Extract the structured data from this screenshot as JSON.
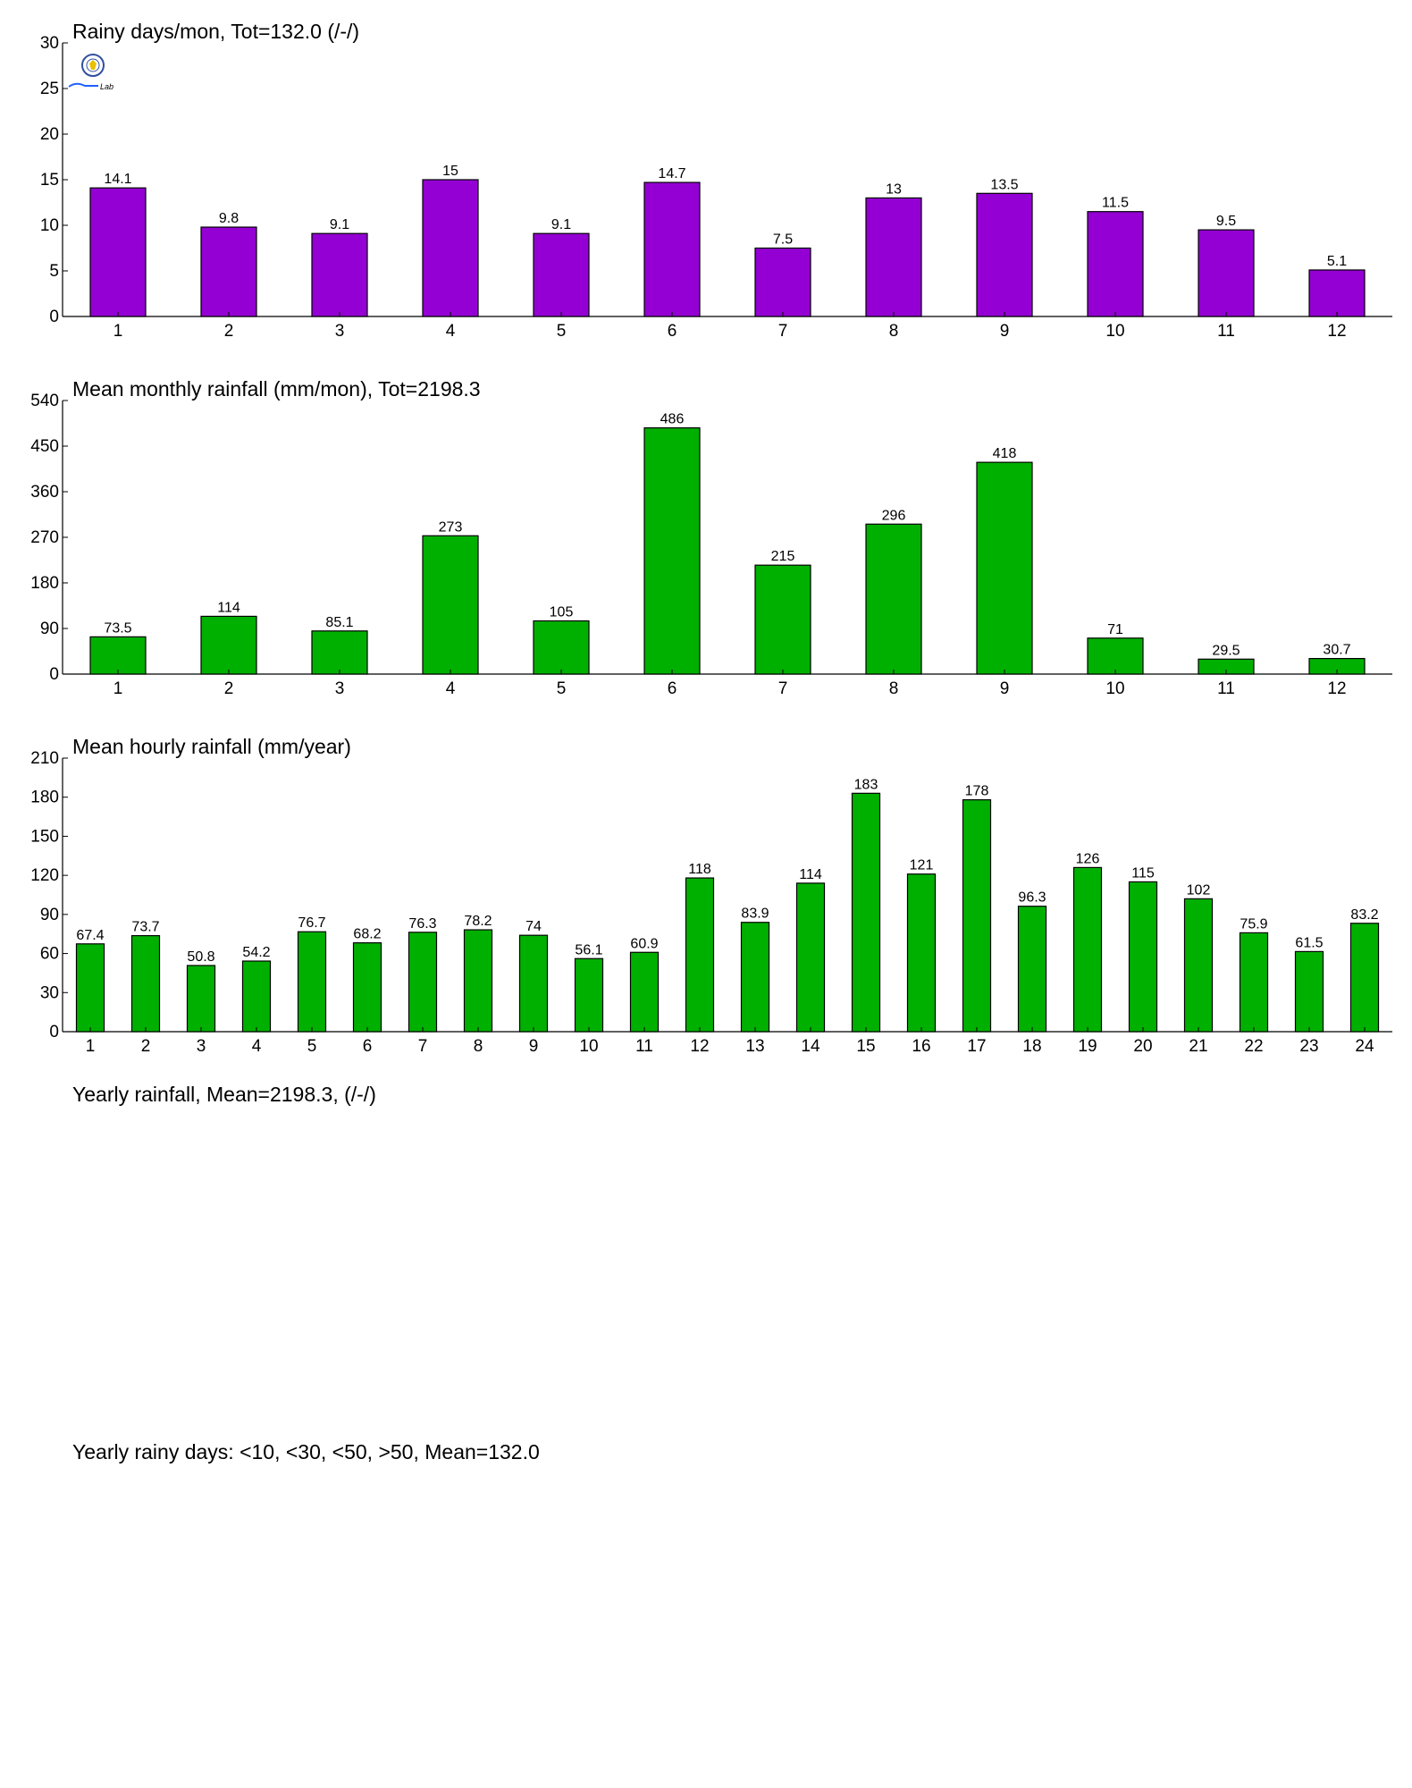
{
  "charts": [
    {
      "title": "Rainy days/mon, Tot=132.0 (/-/)",
      "color": "#9400d3",
      "type": "bar",
      "ylim": [
        0,
        30
      ],
      "yticks": [
        0,
        5,
        10,
        15,
        20,
        25,
        30
      ],
      "categories": [
        "1",
        "2",
        "3",
        "4",
        "5",
        "6",
        "7",
        "8",
        "9",
        "10",
        "11",
        "12"
      ],
      "values": [
        14.1,
        9.8,
        9.1,
        15,
        9.1,
        14.7,
        7.5,
        13,
        13.5,
        11.5,
        9.5,
        5.1
      ],
      "labels": [
        "14.1",
        "9.8",
        "9.1",
        "15",
        "9.1",
        "14.7",
        "7.5",
        "13",
        "13.5",
        "11.5",
        "9.5",
        "5.1"
      ]
    },
    {
      "title": "Mean monthly rainfall (mm/mon), Tot=2198.3",
      "color": "#00b000",
      "type": "bar",
      "ylim": [
        0,
        540
      ],
      "yticks": [
        0,
        90,
        180,
        270,
        360,
        450,
        540
      ],
      "categories": [
        "1",
        "2",
        "3",
        "4",
        "5",
        "6",
        "7",
        "8",
        "9",
        "10",
        "11",
        "12"
      ],
      "values": [
        73.5,
        114,
        85.1,
        273,
        105,
        486,
        215,
        296,
        418,
        71,
        29.5,
        30.7
      ],
      "labels": [
        "73.5",
        "114",
        "85.1",
        "273",
        "105",
        "486",
        "215",
        "296",
        "418",
        "71",
        "29.5",
        "30.7"
      ]
    },
    {
      "title": "Mean hourly rainfall (mm/year)",
      "color": "#00b000",
      "type": "bar",
      "ylim": [
        0,
        210
      ],
      "yticks": [
        0,
        30,
        60,
        90,
        120,
        150,
        180,
        210
      ],
      "categories": [
        "1",
        "2",
        "3",
        "4",
        "5",
        "6",
        "7",
        "8",
        "9",
        "10",
        "11",
        "12",
        "13",
        "14",
        "15",
        "16",
        "17",
        "18",
        "19",
        "20",
        "21",
        "22",
        "23",
        "24"
      ],
      "values": [
        67.4,
        73.7,
        50.8,
        54.2,
        76.7,
        68.2,
        76.3,
        78.2,
        74,
        56.1,
        60.9,
        118,
        83.9,
        114,
        183,
        121,
        178,
        96.3,
        126,
        115,
        102,
        75.9,
        61.5,
        83.2
      ],
      "labels": [
        "67.4",
        "73.7",
        "50.8",
        "54.2",
        "76.7",
        "68.2",
        "76.3",
        "78.2",
        "74",
        "56.1",
        "60.9",
        "118",
        "83.9",
        "114",
        "183",
        "121",
        "178",
        "96.3",
        "126",
        "115",
        "102",
        "75.9",
        "61.5",
        "83.2"
      ]
    }
  ],
  "chart_data": [
    {
      "type": "bar",
      "title": "Rainy days/mon, Tot=132.0 (/-/)",
      "categories": [
        "1",
        "2",
        "3",
        "4",
        "5",
        "6",
        "7",
        "8",
        "9",
        "10",
        "11",
        "12"
      ],
      "values": [
        14.1,
        9.8,
        9.1,
        15,
        9.1,
        14.7,
        7.5,
        13,
        13.5,
        11.5,
        9.5,
        5.1
      ],
      "ylim": [
        0,
        30
      ],
      "xlabel": "",
      "ylabel": ""
    },
    {
      "type": "bar",
      "title": "Mean monthly rainfall (mm/mon), Tot=2198.3",
      "categories": [
        "1",
        "2",
        "3",
        "4",
        "5",
        "6",
        "7",
        "8",
        "9",
        "10",
        "11",
        "12"
      ],
      "values": [
        73.5,
        114,
        85.1,
        273,
        105,
        486,
        215,
        296,
        418,
        71,
        29.5,
        30.7
      ],
      "ylim": [
        0,
        540
      ],
      "xlabel": "",
      "ylabel": ""
    },
    {
      "type": "bar",
      "title": "Mean hourly rainfall (mm/year)",
      "categories": [
        "1",
        "2",
        "3",
        "4",
        "5",
        "6",
        "7",
        "8",
        "9",
        "10",
        "11",
        "12",
        "13",
        "14",
        "15",
        "16",
        "17",
        "18",
        "19",
        "20",
        "21",
        "22",
        "23",
        "24"
      ],
      "values": [
        67.4,
        73.7,
        50.8,
        54.2,
        76.7,
        68.2,
        76.3,
        78.2,
        74,
        56.1,
        60.9,
        118,
        83.9,
        114,
        183,
        121,
        178,
        96.3,
        126,
        115,
        102,
        75.9,
        61.5,
        83.2
      ],
      "ylim": [
        0,
        210
      ],
      "xlabel": "",
      "ylabel": ""
    }
  ],
  "empty_sections": [
    {
      "title": "Yearly rainfall, Mean=2198.3, (/-/)"
    },
    {
      "title": "Yearly rainy days: <10, <30, <50, >50, Mean=132.0"
    }
  ],
  "logo": {
    "name": "station-logo",
    "text": "Lab"
  }
}
